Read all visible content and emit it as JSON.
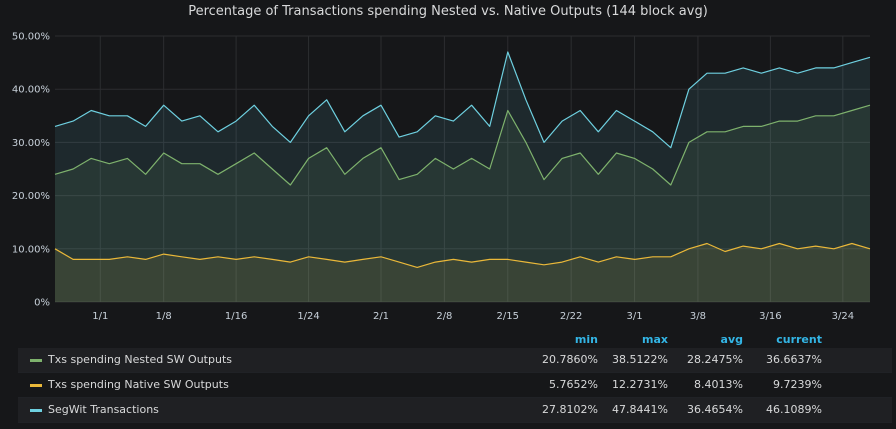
{
  "chart_data": {
    "type": "line",
    "title": "Percentage of Transactions spending Nested vs. Native Outputs (144 block avg)",
    "x_ticks": [
      "1/1",
      "1/8",
      "1/16",
      "1/24",
      "2/1",
      "2/8",
      "2/15",
      "2/22",
      "3/1",
      "3/8",
      "3/16",
      "3/24"
    ],
    "y_ticks": [
      "0%",
      "10.00%",
      "20.00%",
      "30.00%",
      "40.00%",
      "50.00%"
    ],
    "ylim": [
      0,
      50
    ],
    "x_range": [
      "2017-12-27",
      "2018-03-27"
    ],
    "grid": true,
    "legend_position": "bottom",
    "series": [
      {
        "name": "Txs spending Nested SW Outputs",
        "color": "#7eb26d",
        "x": [
          "12/27",
          "12/29",
          "12/31",
          "1/2",
          "1/4",
          "1/6",
          "1/8",
          "1/10",
          "1/12",
          "1/14",
          "1/16",
          "1/18",
          "1/20",
          "1/22",
          "1/24",
          "1/26",
          "1/28",
          "1/30",
          "2/1",
          "2/3",
          "2/5",
          "2/7",
          "2/9",
          "2/11",
          "2/13",
          "2/15",
          "2/17",
          "2/19",
          "2/21",
          "2/23",
          "2/25",
          "2/27",
          "3/1",
          "3/3",
          "3/5",
          "3/7",
          "3/9",
          "3/11",
          "3/13",
          "3/15",
          "3/17",
          "3/19",
          "3/21",
          "3/23",
          "3/25",
          "3/27"
        ],
        "values": [
          24,
          25,
          27,
          26,
          27,
          24,
          28,
          26,
          26,
          24,
          26,
          28,
          25,
          22,
          27,
          29,
          24,
          27,
          29,
          23,
          24,
          27,
          25,
          27,
          25,
          36,
          30,
          23,
          27,
          28,
          24,
          28,
          27,
          25,
          22,
          30,
          32,
          32,
          33,
          33,
          34,
          34,
          35,
          35,
          36,
          37
        ]
      },
      {
        "name": "Txs spending Native SW Outputs",
        "color": "#eab839",
        "x": [
          "12/27",
          "12/29",
          "12/31",
          "1/2",
          "1/4",
          "1/6",
          "1/8",
          "1/10",
          "1/12",
          "1/14",
          "1/16",
          "1/18",
          "1/20",
          "1/22",
          "1/24",
          "1/26",
          "1/28",
          "1/30",
          "2/1",
          "2/3",
          "2/5",
          "2/7",
          "2/9",
          "2/11",
          "2/13",
          "2/15",
          "2/17",
          "2/19",
          "2/21",
          "2/23",
          "2/25",
          "2/27",
          "3/1",
          "3/3",
          "3/5",
          "3/7",
          "3/9",
          "3/11",
          "3/13",
          "3/15",
          "3/17",
          "3/19",
          "3/21",
          "3/23",
          "3/25",
          "3/27"
        ],
        "values": [
          10,
          8,
          8,
          8,
          8.5,
          8,
          9,
          8.5,
          8,
          8.5,
          8,
          8.5,
          8,
          7.5,
          8.5,
          8,
          7.5,
          8,
          8.5,
          7.5,
          6.5,
          7.5,
          8,
          7.5,
          8,
          8,
          7.5,
          7,
          7.5,
          8.5,
          7.5,
          8.5,
          8,
          8.5,
          8.5,
          10,
          11,
          9.5,
          10.5,
          10,
          11,
          10,
          10.5,
          10,
          11,
          10
        ]
      },
      {
        "name": "SegWit Transactions",
        "color": "#6ed0e0",
        "x": [
          "12/27",
          "12/29",
          "12/31",
          "1/2",
          "1/4",
          "1/6",
          "1/8",
          "1/10",
          "1/12",
          "1/14",
          "1/16",
          "1/18",
          "1/20",
          "1/22",
          "1/24",
          "1/26",
          "1/28",
          "1/30",
          "2/1",
          "2/3",
          "2/5",
          "2/7",
          "2/9",
          "2/11",
          "2/13",
          "2/15",
          "2/17",
          "2/19",
          "2/21",
          "2/23",
          "2/25",
          "2/27",
          "3/1",
          "3/3",
          "3/5",
          "3/7",
          "3/9",
          "3/11",
          "3/13",
          "3/15",
          "3/17",
          "3/19",
          "3/21",
          "3/23",
          "3/25",
          "3/27"
        ],
        "values": [
          33,
          34,
          36,
          35,
          35,
          33,
          37,
          34,
          35,
          32,
          34,
          37,
          33,
          30,
          35,
          38,
          32,
          35,
          37,
          31,
          32,
          35,
          34,
          37,
          33,
          47,
          38,
          30,
          34,
          36,
          32,
          36,
          34,
          32,
          29,
          40,
          43,
          43,
          44,
          43,
          44,
          43,
          44,
          44,
          45,
          46
        ]
      }
    ]
  },
  "legend": {
    "headers": {
      "min": "min",
      "max": "max",
      "avg": "avg",
      "current": "current"
    },
    "rows": [
      {
        "name": "Txs spending Nested SW Outputs",
        "color": "#7eb26d",
        "min": "20.7860%",
        "max": "38.5122%",
        "avg": "28.2475%",
        "current": "36.6637%"
      },
      {
        "name": "Txs spending Native SW Outputs",
        "color": "#eab839",
        "min": "5.7652%",
        "max": "12.2731%",
        "avg": "8.4013%",
        "current": "9.7239%"
      },
      {
        "name": "SegWit Transactions",
        "color": "#6ed0e0",
        "min": "27.8102%",
        "max": "47.8441%",
        "avg": "36.4654%",
        "current": "46.1089%"
      }
    ]
  }
}
